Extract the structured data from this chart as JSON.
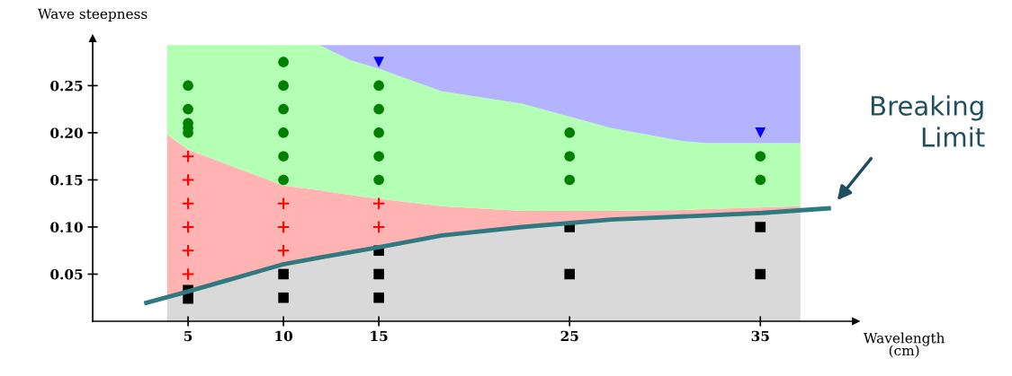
{
  "chart_data": {
    "type": "scatter",
    "xlabel": "Wavelength\n(cm)",
    "ylabel": "Wave steepness",
    "xlim": [
      0,
      40
    ],
    "ylim": [
      0,
      0.3
    ],
    "xticks": [
      5,
      10,
      15,
      25,
      35
    ],
    "yticks": [
      0.05,
      {
        "value": 0.1,
        "label": "0.10"
      },
      0.15,
      {
        "value": 0.2,
        "label": "0.20"
      },
      0.25
    ],
    "grid": false,
    "stacked": true,
    "series": [
      {
        "type": "area",
        "color": "#d9d9d9",
        "x": [
          3.9,
          5,
          10,
          11.9,
          13.5,
          15,
          18.3,
          22.5,
          27.2,
          31,
          32.2,
          37.1
        ],
        "values": [
          0.027,
          0.03,
          0.058,
          0.065,
          0.072,
          0.078,
          0.089,
          0.099,
          0.106,
          0.111,
          0.113,
          0.118
        ]
      },
      {
        "type": "area",
        "color": "#ffb3b3",
        "x": [
          3.9,
          5,
          10,
          11.9,
          13.5,
          15,
          18.3,
          22.5,
          27.2,
          31,
          32.2,
          37.1
        ],
        "values": [
          0.171,
          0.152,
          0.086,
          0.074,
          0.062,
          0.052,
          0.033,
          0.018,
          0.011,
          0.007,
          0.006,
          0.004
        ]
      },
      {
        "type": "area",
        "color": "#b3ffb3",
        "x": [
          3.9,
          5,
          10,
          11.9,
          13.5,
          15,
          18.3,
          22.5,
          27.2,
          31,
          32.2,
          37.1
        ],
        "values": [
          0.095,
          0.111,
          0.149,
          0.154,
          0.143,
          0.138,
          0.122,
          0.114,
          0.088,
          0.073,
          0.07,
          0.067
        ]
      },
      {
        "type": "area",
        "color": "#b3b3ff",
        "x": [
          3.9,
          5,
          10,
          11.9,
          13.5,
          15,
          18.3,
          22.5,
          27.2,
          31,
          32.2,
          37.1
        ],
        "values": [
          0,
          0,
          0,
          0,
          0.016,
          0.025,
          0.049,
          0.062,
          0.088,
          0.102,
          0.104,
          0.104
        ]
      },
      {
        "marker": "circle",
        "color": "#008000",
        "x": [
          5,
          5,
          5,
          5,
          5,
          10,
          10,
          10,
          10,
          10,
          10,
          15,
          15,
          15,
          15,
          15,
          25,
          25,
          25,
          35,
          35
        ],
        "values": [
          0.25,
          0.225,
          0.21,
          0.205,
          0.2,
          0.275,
          0.25,
          0.225,
          0.2,
          0.175,
          0.15,
          0.25,
          0.225,
          0.2,
          0.175,
          0.15,
          0.2,
          0.175,
          0.15,
          0.175,
          0.15
        ]
      },
      {
        "marker": "cross",
        "color": "#ff0000",
        "x": [
          5,
          5,
          5,
          5,
          5,
          5,
          10,
          10,
          10,
          15,
          15
        ],
        "values": [
          0.175,
          0.15,
          0.125,
          0.1,
          0.075,
          0.05,
          0.125,
          0.1,
          0.075,
          0.125,
          0.1
        ]
      },
      {
        "marker": "square",
        "color": "#000000",
        "x": [
          5,
          5,
          10,
          10,
          15,
          15,
          15,
          25,
          25,
          35,
          35
        ],
        "values": [
          0.033,
          0.024,
          0.05,
          0.025,
          0.075,
          0.05,
          0.025,
          0.1,
          0.05,
          0.1,
          0.05
        ]
      },
      {
        "marker": "triangle",
        "color": "#0000ff",
        "x": [
          15,
          35
        ],
        "values": [
          0.275,
          0.2
        ]
      },
      {
        "type": "line",
        "color": "#2f7a80",
        "x": [
          2.7,
          4.9,
          9.9,
          12.0,
          15.1,
          18.3,
          22.5,
          27.2,
          31.9,
          35.1,
          38.7
        ],
        "values": [
          0.019,
          0.031,
          0.06,
          0.068,
          0.079,
          0.091,
          0.1,
          0.108,
          0.112,
          0.115,
          0.12
        ]
      }
    ],
    "annotations": [
      {
        "text": "Breaking Limit",
        "x": 38.7,
        "y": 0.12
      }
    ]
  }
}
